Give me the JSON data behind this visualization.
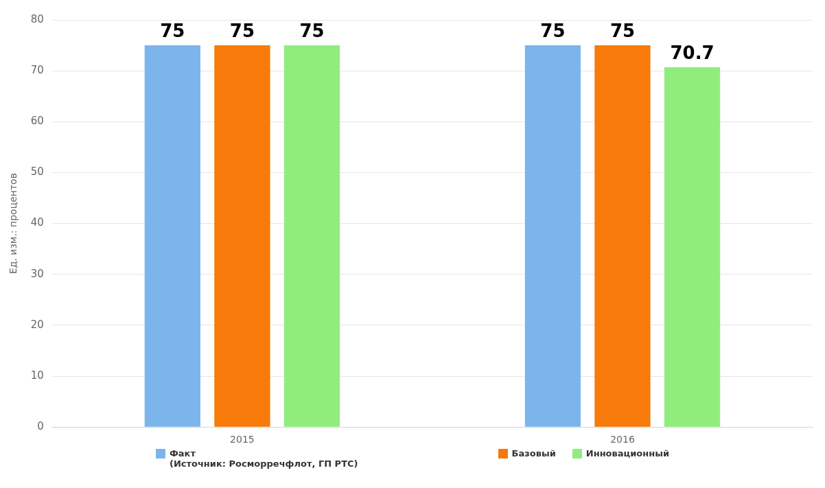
{
  "chart_data": {
    "type": "bar",
    "ylabel": "Ед. изм.: процентов",
    "categories": [
      "2015",
      "2016"
    ],
    "series": [
      {
        "name": "Факт\n(Источник: Росморречфлот, ГП РТС)",
        "color": "#7cb5ec",
        "values": [
          75,
          75
        ]
      },
      {
        "name": "Базовый",
        "color": "#f77a0a",
        "values": [
          75,
          75
        ]
      },
      {
        "name": "Инновационный",
        "color": "#90ed7d",
        "values": [
          75,
          70.7
        ]
      }
    ],
    "ylim": [
      0,
      80
    ],
    "yticks": [
      0,
      10,
      20,
      30,
      40,
      50,
      60,
      70,
      80
    ],
    "grid": "y",
    "legend": "bottom",
    "data_labels": true
  }
}
